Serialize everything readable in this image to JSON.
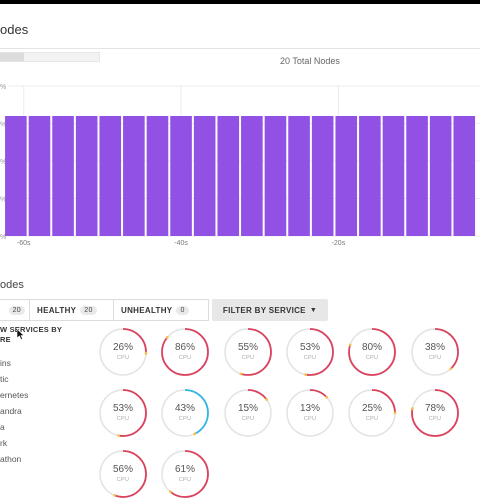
{
  "header": {
    "title": "odes"
  },
  "summary": {
    "total_nodes_label": "20 Total Nodes"
  },
  "chart_data": {
    "type": "bar",
    "x": [
      -61,
      -58,
      -55,
      -52,
      -49,
      -46,
      -43,
      -40,
      -37,
      -34,
      -31,
      -28,
      -25,
      -22,
      -19,
      -16,
      -13,
      -10,
      -7,
      -4
    ],
    "values": [
      20,
      20,
      20,
      20,
      20,
      20,
      20,
      20,
      20,
      20,
      20,
      20,
      20,
      20,
      20,
      20,
      20,
      20,
      20,
      20
    ],
    "x_tick_values": [
      -60,
      -40,
      -20
    ],
    "x_tick_labels": [
      "-60s",
      "-40s",
      "-20s"
    ],
    "y_tick_labels": [
      "%",
      "%",
      "%",
      "%",
      "%"
    ],
    "xlim": [
      -62,
      -2
    ],
    "color": "#9051e4",
    "grid": true
  },
  "section": {
    "title": "odes"
  },
  "tabs": [
    {
      "label": "",
      "count": "20"
    },
    {
      "label": "HEALTHY",
      "count": "20"
    },
    {
      "label": "UNHEALTHY",
      "count": "0"
    }
  ],
  "filter": {
    "label": "FILTER BY SERVICE"
  },
  "services": {
    "heading": "W SERVICES BY\nRE",
    "items": [
      "ins",
      "tic",
      "ernetes",
      "andra",
      "a",
      "rk",
      "athon"
    ]
  },
  "gauges": [
    {
      "value": 26,
      "label": "CPU",
      "color": "#d9435e"
    },
    {
      "value": 86,
      "label": "CPU",
      "color": "#d9435e"
    },
    {
      "value": 55,
      "label": "CPU",
      "color": "#d9435e"
    },
    {
      "value": 53,
      "label": "CPU",
      "color": "#d9435e"
    },
    {
      "value": 80,
      "label": "CPU",
      "color": "#d9435e"
    },
    {
      "value": 38,
      "label": "CPU",
      "color": "#d9435e"
    },
    {
      "value": 53,
      "label": "CPU",
      "color": "#d9435e"
    },
    {
      "value": 43,
      "label": "CPU",
      "color": "#33b5e5"
    },
    {
      "value": 15,
      "label": "CPU",
      "color": "#d9435e"
    },
    {
      "value": 13,
      "label": "CPU",
      "color": "#d9435e"
    },
    {
      "value": 25,
      "label": "CPU",
      "color": "#d9435e"
    },
    {
      "value": 78,
      "label": "CPU",
      "color": "#d9435e"
    },
    {
      "value": 56,
      "label": "CPU",
      "color": "#d9435e"
    },
    {
      "value": 61,
      "label": "CPU",
      "color": "#d9435e"
    }
  ],
  "colors": {
    "accent": "#9051e4",
    "gauge_track": "#e3e3e3",
    "gauge_tip": "#f2c14e"
  }
}
